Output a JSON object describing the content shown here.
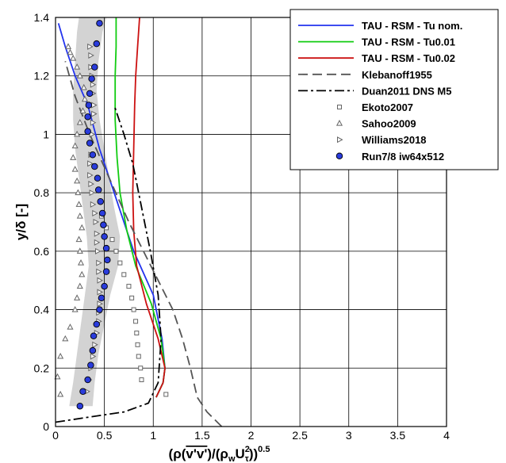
{
  "chart_data": {
    "type": "line",
    "xlabel_parts": [
      "(ρ(",
      "v'v'",
      ")/(ρ",
      "w",
      "U",
      "2",
      "τ",
      "))",
      "0.5"
    ],
    "ylabel_parts": [
      "y/δ [-]"
    ],
    "xlim": [
      0,
      4
    ],
    "ylim": [
      0,
      1.4
    ],
    "xticks": [
      "0",
      "0.5",
      "1",
      "1.5",
      "2",
      "2.5",
      "3",
      "3.5",
      "4"
    ],
    "yticks": [
      "0",
      "0.2",
      "0.4",
      "0.6",
      "0.8",
      "1",
      "1.2",
      "1.4"
    ],
    "grid": true,
    "legend_position": "top-right",
    "colors": {
      "blue": "#2233ee",
      "green": "#11cc11",
      "red": "#cc1111",
      "gray": "#555555",
      "band": "#d3d3d3",
      "marker_fill": "#2a3cdc"
    },
    "series": [
      {
        "name": "TAU - RSM - Tu nom.",
        "style": "solid",
        "color": "#2233ee",
        "x": [
          1.03,
          1.1,
          1.12,
          1.09,
          1.0,
          0.8,
          0.65,
          0.55,
          0.45,
          0.33,
          0.2,
          0.1,
          0.03
        ],
        "y": [
          0.1,
          0.15,
          0.2,
          0.3,
          0.45,
          0.6,
          0.75,
          0.85,
          0.95,
          1.1,
          1.2,
          1.3,
          1.38
        ]
      },
      {
        "name": "TAU - RSM - Tu0.01",
        "style": "solid",
        "color": "#11cc11",
        "x": [
          1.03,
          1.1,
          1.12,
          1.08,
          0.98,
          0.82,
          0.73,
          0.66,
          0.63,
          0.61,
          0.61,
          0.62,
          0.62
        ],
        "y": [
          0.1,
          0.15,
          0.2,
          0.3,
          0.42,
          0.55,
          0.67,
          0.8,
          0.92,
          1.05,
          1.2,
          1.3,
          1.4
        ]
      },
      {
        "name": "TAU - RSM - Tu0.02",
        "style": "solid",
        "color": "#cc1111",
        "x": [
          1.03,
          1.1,
          1.12,
          1.05,
          0.93,
          0.83,
          0.8,
          0.79,
          0.8,
          0.81,
          0.82,
          0.84,
          0.86
        ],
        "y": [
          0.1,
          0.15,
          0.2,
          0.3,
          0.42,
          0.55,
          0.67,
          0.8,
          0.95,
          1.1,
          1.2,
          1.3,
          1.4
        ]
      },
      {
        "name": "Klebanoff1955",
        "style": "dash",
        "color": "#555555",
        "x": [
          1.7,
          1.55,
          1.45,
          1.38,
          1.3,
          1.2,
          1.05,
          0.9,
          0.75,
          0.55,
          0.35,
          0.2,
          0.1
        ],
        "y": [
          0.0,
          0.05,
          0.1,
          0.2,
          0.3,
          0.4,
          0.5,
          0.6,
          0.7,
          0.85,
          1.0,
          1.13,
          1.25
        ]
      },
      {
        "name": "Duan2011 DNS M5",
        "style": "dashdot",
        "color": "#000000",
        "x": [
          0.0,
          0.3,
          0.7,
          0.95,
          1.05,
          1.08,
          1.05,
          0.97,
          0.88,
          0.79,
          0.7,
          0.6
        ],
        "y": [
          0.015,
          0.03,
          0.05,
          0.08,
          0.15,
          0.3,
          0.45,
          0.6,
          0.75,
          0.9,
          1.0,
          1.1
        ]
      },
      {
        "name": "Ekoto2007",
        "marker": "square-open",
        "color": "#666666",
        "x": [
          1.13,
          0.88,
          0.87,
          0.85,
          0.84,
          0.83,
          0.82,
          0.8,
          0.78,
          0.75,
          0.7,
          0.66,
          0.62,
          0.58,
          0.52,
          0.47
        ],
        "y": [
          0.11,
          0.16,
          0.2,
          0.24,
          0.28,
          0.32,
          0.36,
          0.4,
          0.44,
          0.48,
          0.52,
          0.56,
          0.6,
          0.64,
          0.68,
          0.72
        ]
      },
      {
        "name": "Sahoo2009",
        "marker": "triangle-up-open",
        "color": "#666666",
        "x": [
          0.05,
          0.02,
          0.05,
          0.1,
          0.15,
          0.2,
          0.22,
          0.25,
          0.27,
          0.26,
          0.25,
          0.24,
          0.27,
          0.25,
          0.24,
          0.23,
          0.22,
          0.2,
          0.18,
          0.2,
          0.22,
          0.25,
          0.28,
          0.3,
          0.29,
          0.25,
          0.22,
          0.18,
          0.15,
          0.13
        ],
        "y": [
          0.11,
          0.17,
          0.24,
          0.3,
          0.34,
          0.4,
          0.44,
          0.48,
          0.52,
          0.56,
          0.6,
          0.64,
          0.68,
          0.72,
          0.76,
          0.8,
          0.84,
          0.88,
          0.92,
          0.96,
          1.0,
          1.04,
          1.08,
          1.12,
          1.16,
          1.2,
          1.23,
          1.26,
          1.28,
          1.3
        ]
      },
      {
        "name": "Williams2018",
        "marker": "triangle-right-open",
        "color": "#666666",
        "x": [
          0.32,
          0.34,
          0.36,
          0.38,
          0.4,
          0.42,
          0.44,
          0.44,
          0.45,
          0.45,
          0.45,
          0.44,
          0.44,
          0.43,
          0.42,
          0.42,
          0.41,
          0.4,
          0.38,
          0.37,
          0.36,
          0.35,
          0.35,
          0.36,
          0.36,
          0.37,
          0.38,
          0.39,
          0.39,
          0.38,
          0.38,
          0.37,
          0.36,
          0.36,
          0.35
        ],
        "y": [
          0.12,
          0.16,
          0.2,
          0.24,
          0.28,
          0.32,
          0.36,
          0.39,
          0.42,
          0.46,
          0.5,
          0.53,
          0.56,
          0.6,
          0.63,
          0.66,
          0.7,
          0.73,
          0.76,
          0.8,
          0.83,
          0.86,
          0.9,
          0.93,
          0.97,
          1.0,
          1.04,
          1.07,
          1.1,
          1.14,
          1.17,
          1.2,
          1.23,
          1.27,
          1.3
        ]
      },
      {
        "name": "Run7/8 iw64x512",
        "marker": "circle-filled",
        "color": "#2a3cdc",
        "x": [
          0.25,
          0.28,
          0.33,
          0.36,
          0.38,
          0.39,
          0.42,
          0.45,
          0.47,
          0.5,
          0.52,
          0.53,
          0.52,
          0.5,
          0.49,
          0.48,
          0.46,
          0.44,
          0.43,
          0.4,
          0.38,
          0.35,
          0.33,
          0.33,
          0.34,
          0.35,
          0.37,
          0.4,
          0.42,
          0.45
        ],
        "y": [
          0.07,
          0.12,
          0.16,
          0.21,
          0.26,
          0.31,
          0.35,
          0.4,
          0.44,
          0.48,
          0.53,
          0.57,
          0.61,
          0.65,
          0.69,
          0.73,
          0.77,
          0.81,
          0.85,
          0.89,
          0.93,
          0.97,
          1.01,
          1.06,
          1.1,
          1.14,
          1.19,
          1.23,
          1.31,
          1.38
        ]
      }
    ],
    "uncertainty_band": {
      "y": [
        0.07,
        0.15,
        0.25,
        0.35,
        0.45,
        0.55,
        0.65,
        0.75,
        0.85,
        0.95,
        1.05,
        1.15,
        1.25,
        1.35,
        1.4
      ],
      "lo": [
        0.14,
        0.18,
        0.22,
        0.26,
        0.3,
        0.34,
        0.32,
        0.28,
        0.24,
        0.2,
        0.18,
        0.18,
        0.2,
        0.22,
        0.24
      ],
      "hi": [
        0.38,
        0.4,
        0.44,
        0.5,
        0.56,
        0.64,
        0.66,
        0.6,
        0.55,
        0.5,
        0.45,
        0.42,
        0.44,
        0.48,
        0.52
      ]
    }
  }
}
